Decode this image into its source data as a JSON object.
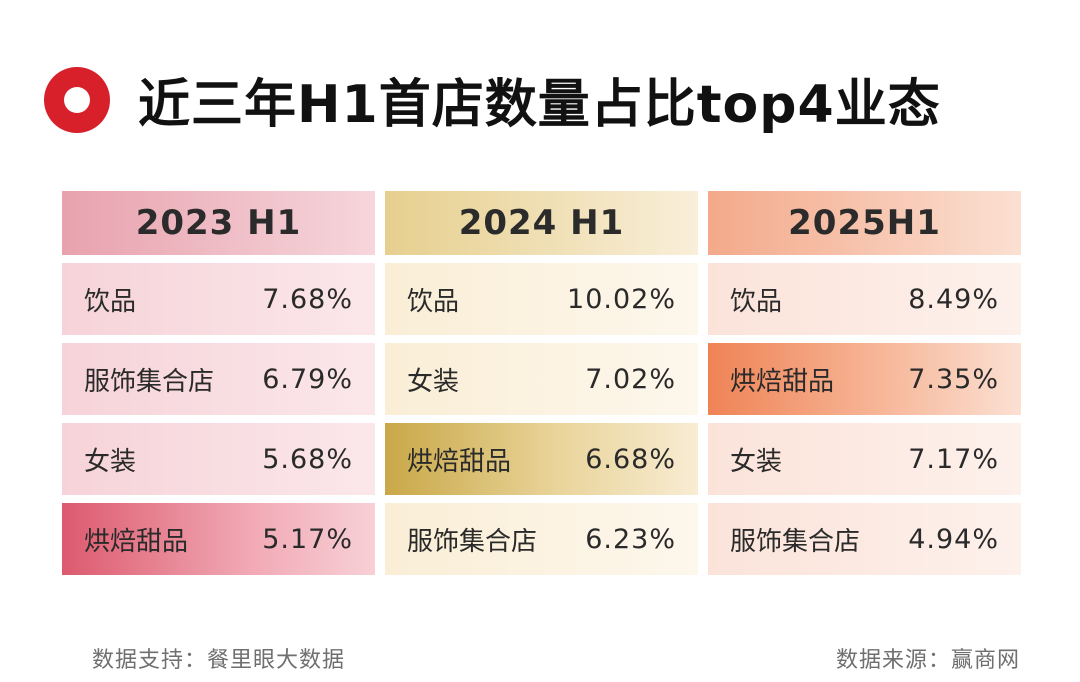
{
  "chart_data": {
    "type": "table",
    "title": "近三年H1首店数量占比top4业态",
    "columns": [
      {
        "period": "2023 H1",
        "rows": [
          {
            "category": "饮品",
            "value": "7.68%"
          },
          {
            "category": "服饰集合店",
            "value": "6.79%"
          },
          {
            "category": "女装",
            "value": "5.68%"
          },
          {
            "category": "烘焙甜品",
            "value": "5.17%"
          }
        ]
      },
      {
        "period": "2024 H1",
        "rows": [
          {
            "category": "饮品",
            "value": "10.02%"
          },
          {
            "category": "女装",
            "value": "7.02%"
          },
          {
            "category": "烘焙甜品",
            "value": "6.68%"
          },
          {
            "category": "服饰集合店",
            "value": "6.23%"
          }
        ]
      },
      {
        "period": "2025H1",
        "rows": [
          {
            "category": "饮品",
            "value": "8.49%"
          },
          {
            "category": "烘焙甜品",
            "value": "7.35%"
          },
          {
            "category": "女装",
            "value": "7.17%"
          },
          {
            "category": "服饰集合店",
            "value": "4.94%"
          }
        ]
      }
    ],
    "highlight_category": "烘焙甜品"
  },
  "footer": {
    "support": "数据支持：餐里眼大数据",
    "source": "数据来源：赢商网"
  },
  "colors": {
    "title_icon": "#d8202a",
    "col_2023": "#dc5a6e",
    "col_2024": "#c9a848",
    "col_2025": "#ef8356"
  }
}
